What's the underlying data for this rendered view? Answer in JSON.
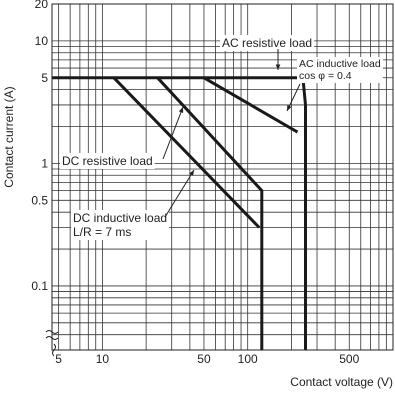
{
  "chart_data": {
    "type": "line",
    "title": "",
    "xlabel": "Contact voltage (V)",
    "ylabel": "Contact current (A)",
    "x_scale": "log",
    "y_scale": "log",
    "xlim": [
      4.5,
      1000
    ],
    "ylim": [
      0.03,
      20
    ],
    "x_ticks": [
      5,
      10,
      50,
      100,
      500
    ],
    "x_tick_labels": [
      "5",
      "10",
      "50",
      "100",
      "500"
    ],
    "y_ticks": [
      0.1,
      0.5,
      1,
      5,
      10,
      20
    ],
    "y_tick_labels": [
      "0.1",
      "0.5",
      "1",
      "5",
      "10",
      "20"
    ],
    "grid": true,
    "series": [
      {
        "name": "AC resistive load",
        "x": [
          4.5,
          240,
          250,
          250
        ],
        "y": [
          5,
          5,
          3,
          0.03
        ]
      },
      {
        "name": "AC inductive load cos φ = 0.4",
        "x": [
          50,
          220
        ],
        "y": [
          5,
          1.8
        ]
      },
      {
        "name": "DC resistive load",
        "x": [
          24,
          125,
          125
        ],
        "y": [
          5,
          0.6,
          0.03
        ]
      },
      {
        "name": "DC inductive load L/R = 7 ms",
        "x": [
          12,
          120
        ],
        "y": [
          5,
          0.3
        ]
      }
    ],
    "annotations": {
      "ac_resistive": "AC resistive load",
      "ac_inductive_1": "AC inductive load",
      "ac_inductive_2": "cos φ = 0.4",
      "dc_resistive": "DC resistive load",
      "dc_inductive_1": "DC inductive load",
      "dc_inductive_2": "L/R = 7 ms"
    },
    "colors": {
      "line": "#1a1a1a",
      "grid": "#333333"
    }
  }
}
